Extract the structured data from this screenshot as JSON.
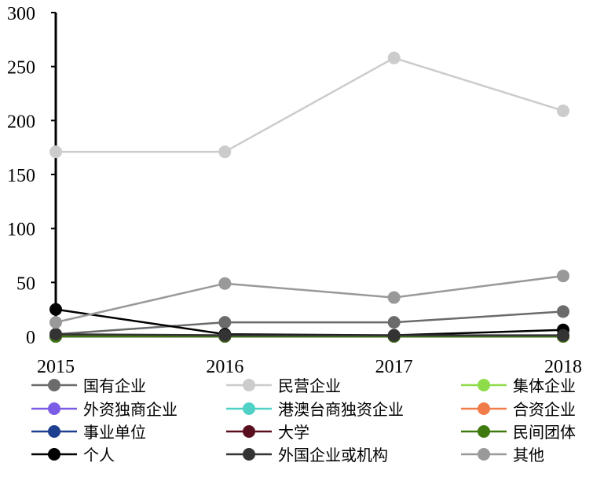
{
  "chart_data": {
    "type": "line",
    "title": "",
    "xlabel": "",
    "ylabel": "",
    "x": [
      "2015",
      "2016",
      "2017",
      "2018"
    ],
    "ylim": [
      0,
      300
    ],
    "yticks": [
      0,
      50,
      100,
      150,
      200,
      250,
      300
    ],
    "grid": false,
    "legend_position": "bottom",
    "series": [
      {
        "name": "国有企业",
        "color": "#6b6b6b",
        "values": [
          2,
          13,
          13,
          23
        ]
      },
      {
        "name": "民营企业",
        "color": "#cccccc",
        "values": [
          171,
          171,
          258,
          209
        ]
      },
      {
        "name": "集体企业",
        "color": "#8fdc4a",
        "values": [
          0,
          0,
          0,
          0
        ]
      },
      {
        "name": "外资独商企业",
        "color": "#7b5ce6",
        "values": [
          0,
          0,
          0,
          0
        ]
      },
      {
        "name": "港澳台商独资企业",
        "color": "#4fd1c5",
        "values": [
          0,
          0,
          0,
          0
        ]
      },
      {
        "name": "合资企业",
        "color": "#f07c4a",
        "values": [
          0,
          0,
          0,
          0
        ]
      },
      {
        "name": "事业单位",
        "color": "#1f3f8f",
        "values": [
          0,
          0,
          0,
          0
        ]
      },
      {
        "name": "大学",
        "color": "#5a0f1e",
        "values": [
          0,
          0,
          0,
          0
        ]
      },
      {
        "name": "民间团体",
        "color": "#3f7a10",
        "values": [
          0,
          0,
          0,
          0
        ]
      },
      {
        "name": "个人",
        "color": "#000000",
        "values": [
          25,
          2,
          1,
          6
        ]
      },
      {
        "name": "外国企业或机构",
        "color": "#333333",
        "values": [
          2,
          1,
          1,
          1
        ]
      },
      {
        "name": "其他",
        "color": "#999999",
        "values": [
          13,
          49,
          36,
          56
        ]
      }
    ]
  }
}
